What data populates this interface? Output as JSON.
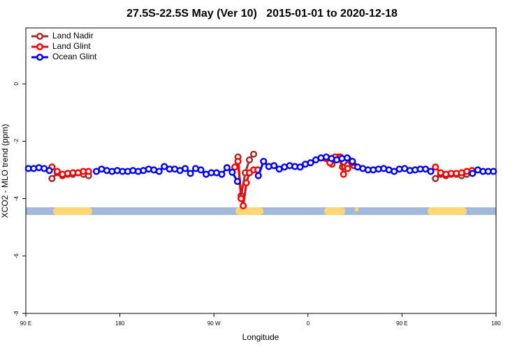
{
  "chart_data": {
    "type": "line",
    "title": "27.5S-22.5S May (Ver 10)   2015-01-01 to 2020-12-18",
    "x_label": "Longitude",
    "y_label": "XCO2 - MLO trend (ppm)",
    "xlim": [
      90,
      540
    ],
    "xticks": [
      {
        "value": 90,
        "label": "90 E"
      },
      180,
      {
        "value": 270,
        "label": "90 W"
      },
      {
        "value": 360,
        "label": "0"
      },
      {
        "value": 450,
        "label": "90 E"
      },
      {
        "value": 540,
        "label": "180"
      }
    ],
    "ylim": [
      -8,
      1.95
    ],
    "yticks": [
      -8,
      -6,
      -4,
      -2,
      0
    ],
    "legend": "top-left",
    "series": [
      {
        "name": "Land Nadir",
        "color": "#a52a2a",
        "x": [
          115,
          120,
          125,
          130,
          135,
          140,
          145,
          150,
          220,
          293,
          296,
          300,
          304,
          308,
          345,
          378,
          383,
          389,
          393,
          399,
          404,
          445,
          482,
          487,
          492,
          497,
          502,
          507,
          512,
          517
        ],
        "values": [
          -3.3,
          -3.1,
          -3.2,
          -3.15,
          -3.15,
          -3.1,
          -3.15,
          -3.2,
          null,
          -2.55,
          -3.9,
          -3.1,
          -2.65,
          -2.45,
          null,
          -2.6,
          -2.8,
          -2.55,
          -2.9,
          -2.65,
          -2.85,
          null,
          -3.3,
          -3.15,
          -3.2,
          -3.15,
          -3.15,
          -3.2,
          -3.15,
          -3.1
        ]
      },
      {
        "name": "Land Glint",
        "color": "#ff0000",
        "x": [
          115,
          120,
          125,
          130,
          135,
          140,
          145,
          150,
          220,
          290,
          293,
          296,
          298,
          301,
          304,
          308,
          312,
          345,
          377,
          381,
          386,
          391,
          394,
          398,
          402,
          445,
          482,
          487,
          492,
          497,
          502,
          507,
          512,
          517
        ],
        "values": [
          -2.9,
          -3.05,
          -3.15,
          -3.12,
          -3.1,
          -3.1,
          -3.05,
          -3.05,
          null,
          -2.9,
          -2.7,
          -4.0,
          -4.25,
          -3.45,
          -3.1,
          -3.0,
          -3.0,
          null,
          -2.6,
          -2.75,
          -2.55,
          -2.55,
          -3.15,
          -2.95,
          -2.75,
          null,
          -2.9,
          -3.1,
          -3.15,
          -3.12,
          -3.12,
          -3.1,
          -3.05,
          -3.02
        ]
      },
      {
        "name": "Ocean Glint",
        "color": "#0000ff",
        "x": [
          92.5,
          97.5,
          102.5,
          107.5,
          112.5,
          117.5,
          122.5,
          127.5,
          132.5,
          137.5,
          142.5,
          147.5,
          152.5,
          157.5,
          162.5,
          167.5,
          172.5,
          177.5,
          182.5,
          187.5,
          192.5,
          197.5,
          202.5,
          207.5,
          212.5,
          217.5,
          222.5,
          227.5,
          232.5,
          237.5,
          242.5,
          247.5,
          252.5,
          257.5,
          262.5,
          267.5,
          272.5,
          277.5,
          282.5,
          287.5,
          292.5,
          297.5,
          302.5,
          307.5,
          312.5,
          317.5,
          322.5,
          327.5,
          332.5,
          337.5,
          342.5,
          347.5,
          352.5,
          357.5,
          362.5,
          367.5,
          372.5,
          377.5,
          382.5,
          387.5,
          392.5,
          397.5,
          402.5,
          407.5,
          412.5,
          417.5,
          422.5,
          427.5,
          432.5,
          437.5,
          442.5,
          447.5,
          452.5,
          457.5,
          462.5,
          467.5,
          472.5,
          477.5,
          482.5,
          487.5,
          492.5,
          497.5,
          502.5,
          507.5,
          512.5,
          517.5,
          522.5,
          527.5,
          532.5,
          537.5
        ],
        "values": [
          -2.95,
          -2.95,
          -2.92,
          -2.95,
          -3.02,
          null,
          null,
          null,
          null,
          null,
          null,
          null,
          null,
          -3.05,
          -2.97,
          -3.02,
          -3.05,
          -3.02,
          -3.05,
          -3.05,
          -3.02,
          -3.05,
          -3.02,
          -2.97,
          -3.0,
          -3.05,
          -2.88,
          -2.97,
          -2.97,
          -3.02,
          -2.95,
          -3.12,
          -2.95,
          -3.0,
          -3.15,
          -3.1,
          -3.1,
          -3.15,
          -2.92,
          -3.08,
          -3.4,
          null,
          null,
          null,
          -3.2,
          -2.7,
          -2.88,
          -2.85,
          -2.97,
          -2.9,
          -2.85,
          -2.88,
          -2.9,
          -2.8,
          -2.75,
          -2.65,
          -2.58,
          -2.55,
          -2.6,
          -2.65,
          -2.6,
          -2.58,
          -2.7,
          -2.9,
          -2.95,
          -3.0,
          -3.0,
          -2.97,
          -2.95,
          -3.0,
          -3.05,
          -2.97,
          -2.95,
          -3.02,
          -3.0,
          -2.97,
          -2.97,
          -3.05,
          null,
          null,
          null,
          null,
          null,
          null,
          null,
          -3.12,
          -3.0,
          -3.05,
          -3.05,
          -3.05
        ]
      }
    ]
  }
}
